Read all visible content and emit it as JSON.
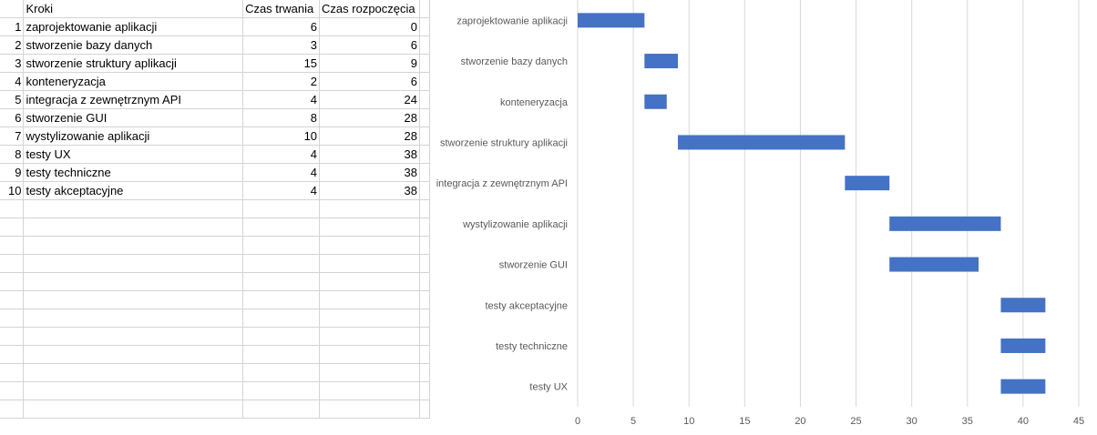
{
  "spreadsheet": {
    "headers": [
      "",
      "Kroki",
      "Czas trwania",
      "Czas rozpoczęcia"
    ],
    "rows": [
      [
        "1",
        "zaprojektowanie aplikacji",
        "6",
        "0"
      ],
      [
        "2",
        "stworzenie bazy danych",
        "3",
        "6"
      ],
      [
        "3",
        "stworzenie struktury aplikacji",
        "15",
        "9"
      ],
      [
        "4",
        "konteneryzacja",
        "2",
        "6"
      ],
      [
        "5",
        "integracja z zewnętrznym API",
        "4",
        "24"
      ],
      [
        "6",
        "stworzenie GUI",
        "8",
        "28"
      ],
      [
        "7",
        "wystylizowanie aplikacji",
        "10",
        "28"
      ],
      [
        "8",
        "testy UX",
        "4",
        "38"
      ],
      [
        "9",
        "testy techniczne",
        "4",
        "38"
      ],
      [
        "10",
        "testy akceptacyjne",
        "4",
        "38"
      ]
    ],
    "empty_rows": 12
  },
  "chart_data": {
    "type": "bar",
    "orientation": "horizontal",
    "stacked_gantt": true,
    "categories": [
      "zaprojektowanie aplikacji",
      "stworzenie bazy danych",
      "konteneryzacja",
      "stworzenie struktury aplikacji",
      "integracja z zewnętrznym API",
      "wystylizowanie aplikacji",
      "stworzenie GUI",
      "testy akceptacyjne",
      "testy techniczne",
      "testy UX"
    ],
    "start": [
      0,
      6,
      6,
      9,
      24,
      28,
      28,
      38,
      38,
      38
    ],
    "duration": [
      6,
      3,
      2,
      15,
      4,
      10,
      8,
      4,
      4,
      4
    ],
    "xlim": [
      0,
      45
    ],
    "x_ticks": [
      0,
      5,
      10,
      15,
      20,
      25,
      30,
      35,
      40,
      45
    ],
    "grid": true,
    "bar_color": "#4472c4",
    "grid_color": "#d9d9d9",
    "title": "",
    "xlabel": "",
    "ylabel": ""
  }
}
